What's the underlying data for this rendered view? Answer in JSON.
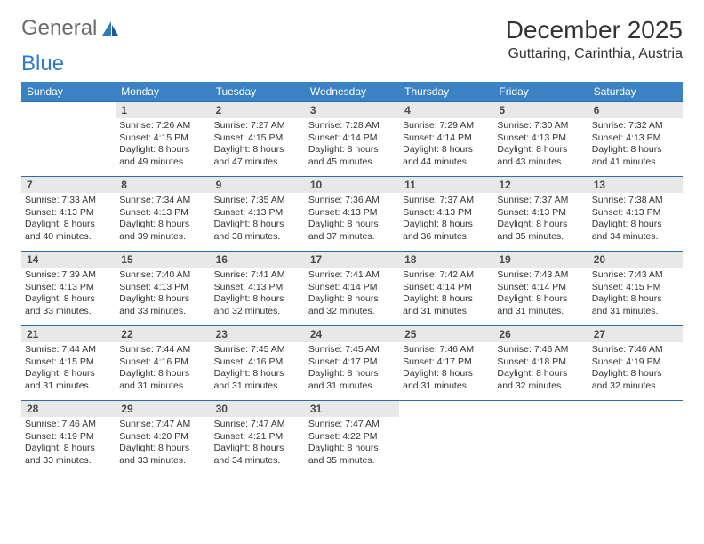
{
  "logo": {
    "word1": "General",
    "word2": "Blue"
  },
  "title": "December 2025",
  "location": "Guttaring, Carinthia, Austria",
  "colors": {
    "header_bg": "#3b82c4",
    "header_text": "#ffffff",
    "daynum_bg": "#e8e8e8",
    "row_border": "#2e6ba8",
    "logo_gray": "#6b6b6b",
    "logo_blue": "#2e7bc0"
  },
  "weekdays": [
    "Sunday",
    "Monday",
    "Tuesday",
    "Wednesday",
    "Thursday",
    "Friday",
    "Saturday"
  ],
  "weeks": [
    [
      null,
      {
        "n": "1",
        "sr": "7:26 AM",
        "ss": "4:15 PM",
        "dl": "8 hours and 49 minutes."
      },
      {
        "n": "2",
        "sr": "7:27 AM",
        "ss": "4:15 PM",
        "dl": "8 hours and 47 minutes."
      },
      {
        "n": "3",
        "sr": "7:28 AM",
        "ss": "4:14 PM",
        "dl": "8 hours and 45 minutes."
      },
      {
        "n": "4",
        "sr": "7:29 AM",
        "ss": "4:14 PM",
        "dl": "8 hours and 44 minutes."
      },
      {
        "n": "5",
        "sr": "7:30 AM",
        "ss": "4:13 PM",
        "dl": "8 hours and 43 minutes."
      },
      {
        "n": "6",
        "sr": "7:32 AM",
        "ss": "4:13 PM",
        "dl": "8 hours and 41 minutes."
      }
    ],
    [
      {
        "n": "7",
        "sr": "7:33 AM",
        "ss": "4:13 PM",
        "dl": "8 hours and 40 minutes."
      },
      {
        "n": "8",
        "sr": "7:34 AM",
        "ss": "4:13 PM",
        "dl": "8 hours and 39 minutes."
      },
      {
        "n": "9",
        "sr": "7:35 AM",
        "ss": "4:13 PM",
        "dl": "8 hours and 38 minutes."
      },
      {
        "n": "10",
        "sr": "7:36 AM",
        "ss": "4:13 PM",
        "dl": "8 hours and 37 minutes."
      },
      {
        "n": "11",
        "sr": "7:37 AM",
        "ss": "4:13 PM",
        "dl": "8 hours and 36 minutes."
      },
      {
        "n": "12",
        "sr": "7:37 AM",
        "ss": "4:13 PM",
        "dl": "8 hours and 35 minutes."
      },
      {
        "n": "13",
        "sr": "7:38 AM",
        "ss": "4:13 PM",
        "dl": "8 hours and 34 minutes."
      }
    ],
    [
      {
        "n": "14",
        "sr": "7:39 AM",
        "ss": "4:13 PM",
        "dl": "8 hours and 33 minutes."
      },
      {
        "n": "15",
        "sr": "7:40 AM",
        "ss": "4:13 PM",
        "dl": "8 hours and 33 minutes."
      },
      {
        "n": "16",
        "sr": "7:41 AM",
        "ss": "4:13 PM",
        "dl": "8 hours and 32 minutes."
      },
      {
        "n": "17",
        "sr": "7:41 AM",
        "ss": "4:14 PM",
        "dl": "8 hours and 32 minutes."
      },
      {
        "n": "18",
        "sr": "7:42 AM",
        "ss": "4:14 PM",
        "dl": "8 hours and 31 minutes."
      },
      {
        "n": "19",
        "sr": "7:43 AM",
        "ss": "4:14 PM",
        "dl": "8 hours and 31 minutes."
      },
      {
        "n": "20",
        "sr": "7:43 AM",
        "ss": "4:15 PM",
        "dl": "8 hours and 31 minutes."
      }
    ],
    [
      {
        "n": "21",
        "sr": "7:44 AM",
        "ss": "4:15 PM",
        "dl": "8 hours and 31 minutes."
      },
      {
        "n": "22",
        "sr": "7:44 AM",
        "ss": "4:16 PM",
        "dl": "8 hours and 31 minutes."
      },
      {
        "n": "23",
        "sr": "7:45 AM",
        "ss": "4:16 PM",
        "dl": "8 hours and 31 minutes."
      },
      {
        "n": "24",
        "sr": "7:45 AM",
        "ss": "4:17 PM",
        "dl": "8 hours and 31 minutes."
      },
      {
        "n": "25",
        "sr": "7:46 AM",
        "ss": "4:17 PM",
        "dl": "8 hours and 31 minutes."
      },
      {
        "n": "26",
        "sr": "7:46 AM",
        "ss": "4:18 PM",
        "dl": "8 hours and 32 minutes."
      },
      {
        "n": "27",
        "sr": "7:46 AM",
        "ss": "4:19 PM",
        "dl": "8 hours and 32 minutes."
      }
    ],
    [
      {
        "n": "28",
        "sr": "7:46 AM",
        "ss": "4:19 PM",
        "dl": "8 hours and 33 minutes."
      },
      {
        "n": "29",
        "sr": "7:47 AM",
        "ss": "4:20 PM",
        "dl": "8 hours and 33 minutes."
      },
      {
        "n": "30",
        "sr": "7:47 AM",
        "ss": "4:21 PM",
        "dl": "8 hours and 34 minutes."
      },
      {
        "n": "31",
        "sr": "7:47 AM",
        "ss": "4:22 PM",
        "dl": "8 hours and 35 minutes."
      },
      null,
      null,
      null
    ]
  ],
  "labels": {
    "sunrise": "Sunrise:",
    "sunset": "Sunset:",
    "daylight": "Daylight:"
  }
}
